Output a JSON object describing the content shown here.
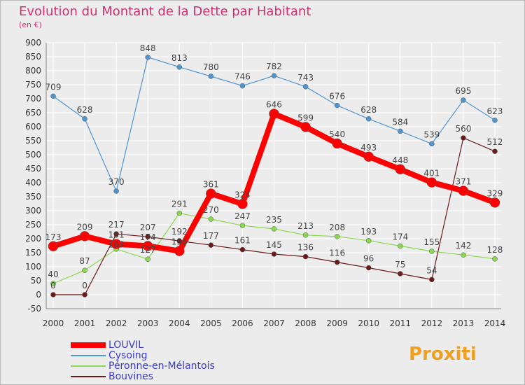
{
  "chart_data": {
    "type": "line",
    "title": "Evolution du Montant de la Dette par Habitant",
    "subtitle": "(en €)",
    "x": [
      "2000",
      "2001",
      "2002",
      "2003",
      "2004",
      "2005",
      "2006",
      "2007",
      "2008",
      "2009",
      "2010",
      "2011",
      "2012",
      "2013",
      "2014"
    ],
    "ylim": [
      -50,
      900
    ],
    "yticks": [
      -50,
      0,
      50,
      100,
      150,
      200,
      250,
      300,
      350,
      400,
      450,
      500,
      550,
      600,
      650,
      700,
      750,
      800,
      850,
      900
    ],
    "series": [
      {
        "name": "LOUVIL",
        "color": "#ff0000",
        "values": [
          173,
          209,
          181,
          174,
          156,
          361,
          324,
          646,
          599,
          540,
          493,
          448,
          401,
          371,
          329
        ]
      },
      {
        "name": "Cysoing",
        "color": "#4f95d0",
        "values": [
          709,
          628,
          370,
          848,
          813,
          780,
          746,
          782,
          743,
          676,
          628,
          584,
          539,
          695,
          623
        ]
      },
      {
        "name": "Péronne-en-Mélantois",
        "color": "#8ad850",
        "values": [
          40,
          87,
          163,
          127,
          291,
          270,
          247,
          235,
          213,
          208,
          193,
          174,
          155,
          142,
          128
        ]
      },
      {
        "name": "Bouvines",
        "color": "#6b1a1a",
        "values": [
          0,
          0,
          217,
          207,
          192,
          177,
          161,
          145,
          136,
          116,
          96,
          75,
          54,
          560,
          512
        ]
      }
    ]
  },
  "logo": "Proxiti"
}
